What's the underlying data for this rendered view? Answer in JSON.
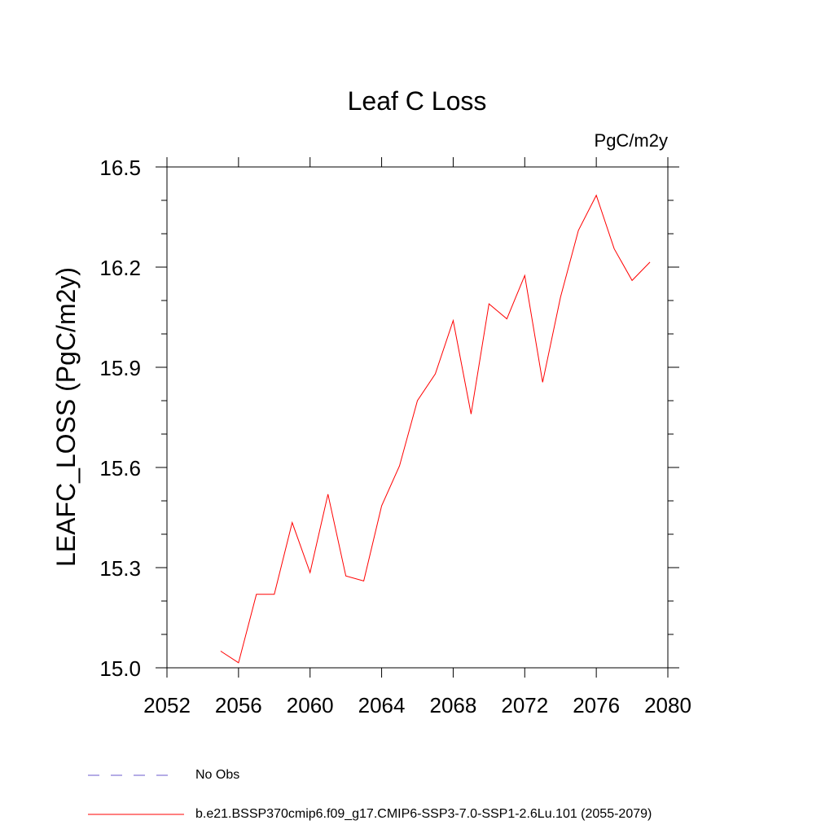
{
  "chart_data": {
    "type": "line",
    "title": "Leaf C Loss",
    "units_label": "PgC/m2y",
    "ylabel": "LEAFC_LOSS  (PgC/m2y)",
    "xlabel": "",
    "xlim": [
      2052,
      2080
    ],
    "ylim": [
      15.0,
      16.5
    ],
    "x_ticks": [
      2052,
      2056,
      2060,
      2064,
      2068,
      2072,
      2076,
      2080
    ],
    "x_tick_labels": [
      "2052",
      "2056",
      "2060",
      "2064",
      "2068",
      "2072",
      "2076",
      "2080"
    ],
    "y_ticks": [
      15.0,
      15.3,
      15.6,
      15.9,
      16.2,
      16.5
    ],
    "y_tick_labels": [
      "15.0",
      "15.3",
      "15.6",
      "15.9",
      "16.2",
      "16.5"
    ],
    "grid": false,
    "legend_placement": "bottom",
    "series": [
      {
        "name": "b.e21.BSSP370cmip6.f09_g17.CMIP6-SSP3-7.0-SSP1-2.6Lu.101 (2055-2079)",
        "color": "#ff0000",
        "style": "solid",
        "x": [
          2055,
          2056,
          2057,
          2058,
          2059,
          2060,
          2061,
          2062,
          2063,
          2064,
          2065,
          2066,
          2067,
          2068,
          2069,
          2070,
          2071,
          2072,
          2073,
          2074,
          2075,
          2076,
          2077,
          2078,
          2079
        ],
        "y": [
          15.05,
          15.015,
          15.22,
          15.22,
          15.435,
          15.285,
          15.52,
          15.275,
          15.26,
          15.485,
          15.605,
          15.8,
          15.88,
          16.04,
          15.76,
          16.09,
          16.045,
          16.175,
          15.855,
          16.11,
          16.31,
          16.415,
          16.255,
          16.16,
          16.215
        ]
      }
    ],
    "legend": [
      {
        "label": "No Obs",
        "color": "#6a5acd",
        "style": "dashed"
      },
      {
        "label": "b.e21.BSSP370cmip6.f09_g17.CMIP6-SSP3-7.0-SSP1-2.6Lu.101 (2055-2079)",
        "color": "#ff0000",
        "style": "solid"
      }
    ]
  }
}
